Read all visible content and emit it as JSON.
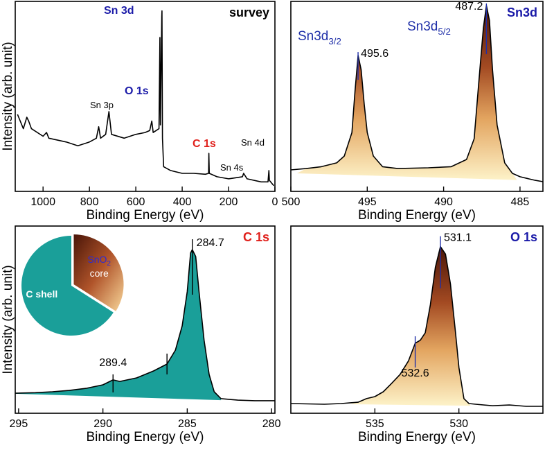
{
  "chart_data": [
    {
      "type": "line",
      "title": "survey",
      "title_color": "#000000",
      "x_label": "Binding Energy (eV)",
      "y_label": "Intensity (arb. unit)",
      "color": "#000000",
      "x": [
        1110,
        1085,
        1070,
        1062,
        1050,
        1000,
        985,
        975,
        900,
        850,
        800,
        770,
        760,
        752,
        730,
        716,
        705,
        650,
        600,
        560,
        540,
        531,
        525,
        500,
        496,
        494,
        488,
        487,
        485,
        480,
        450,
        400,
        350,
        300,
        286,
        285,
        283,
        250,
        200,
        140,
        135,
        120,
        60,
        30,
        26,
        24,
        5
      ],
      "values": [
        40.5,
        33,
        39,
        37,
        33,
        29,
        31,
        28,
        26,
        24,
        26,
        28,
        34,
        28,
        30,
        42,
        30,
        28,
        30,
        31,
        32,
        37,
        31,
        33,
        81,
        35,
        92,
        95,
        28,
        13,
        11,
        9.5,
        9.5,
        9,
        9.5,
        20,
        9.5,
        7.7,
        6.6,
        7.7,
        9.5,
        6.6,
        5,
        5,
        11,
        5.8,
        3
      ],
      "xlim": [
        1120,
        0
      ],
      "ylim": [
        0,
        100
      ],
      "xticks": [
        1000,
        800,
        600,
        400,
        200,
        0
      ],
      "annotations": [
        {
          "text": "Sn 3d",
          "color": "#1a1aa8",
          "bold": true
        },
        {
          "text": "O 1s",
          "color": "#1a1aa8",
          "bold": true
        },
        {
          "text": "C 1s",
          "color": "#e0201b",
          "bold": true
        },
        {
          "text": "Sn 3p",
          "color": "#000000",
          "bold": false
        },
        {
          "text": "Sn 4s",
          "color": "#000000",
          "bold": false
        },
        {
          "text": "Sn 4d",
          "color": "#000000",
          "bold": false
        }
      ]
    },
    {
      "type": "line",
      "title": "Sn3d",
      "title_color": "#1a1aa8",
      "x_label": "Binding Energy (eV)",
      "color": "#000000",
      "fill": "gradient",
      "x": [
        500,
        499,
        498,
        497,
        496.5,
        496,
        495.8,
        495.6,
        495.4,
        495.2,
        495,
        494.6,
        494,
        493,
        491,
        489.5,
        488.5,
        488,
        487.7,
        487.4,
        487.2,
        487,
        486.8,
        486.5,
        486,
        485.5,
        485,
        484,
        483.5
      ],
      "values": [
        11.3,
        12,
        13,
        15,
        18.6,
        31,
        53,
        71.5,
        64,
        46,
        31,
        18.6,
        13,
        12,
        12.4,
        13,
        16.8,
        27.7,
        57,
        86,
        97.8,
        90,
        64,
        35,
        15,
        9.5,
        7.7,
        5.8,
        5.1
      ],
      "baseline_x": [
        499.6,
        485.2
      ],
      "baseline_values": [
        9.5,
        6
      ],
      "xlim": [
        500,
        483.5
      ],
      "ylim": [
        0,
        100
      ],
      "xticks": [
        500,
        495,
        490,
        485
      ],
      "peaks": [
        495.6,
        487.2
      ],
      "marker_color": "#1f2fa8",
      "annotations": [
        {
          "text": "Sn3d",
          "sub": "3/2",
          "color": "#1f2fa8"
        },
        {
          "text": "Sn3d",
          "sub": "5/2",
          "color": "#1f2fa8"
        }
      ]
    },
    {
      "type": "line",
      "title": "C 1s",
      "title_color": "#e0201b",
      "x_label": "Binding Energy (eV)",
      "y_label": "Intensity (arb. unit)",
      "color": "#000000",
      "fill": "#1a9f99",
      "x": [
        295.2,
        294,
        293,
        292,
        291,
        290,
        289.4,
        289,
        288,
        287,
        286.2,
        285.7,
        285.3,
        285,
        284.8,
        284.7,
        284.5,
        284.3,
        284,
        283.7,
        283.4,
        283,
        282,
        281,
        279.8
      ],
      "values": [
        10.7,
        11,
        11.5,
        12.2,
        13.3,
        15.2,
        17.8,
        17,
        18.9,
        22.6,
        26.3,
        33.7,
        46.7,
        65,
        85.6,
        87.4,
        83.7,
        65,
        39,
        20.7,
        11.5,
        7.8,
        7,
        6.7,
        6.7
      ],
      "baseline_x": [
        295.2,
        283
      ],
      "baseline_values": [
        10.4,
        7
      ],
      "xlim": [
        295.2,
        279.8
      ],
      "ylim": [
        0,
        100
      ],
      "xticks": [
        295,
        290,
        285,
        280
      ],
      "peaks": [
        284.7,
        289.4
      ],
      "shoulder": 286.2,
      "marker_color": "#000000",
      "inset": {
        "type": "pie",
        "labels": [
          "C shell",
          "core"
        ],
        "values": [
          66,
          34
        ],
        "colors": [
          "#1a9f99",
          "gradient"
        ],
        "formula": {
          "text": "SnO",
          "sub": "2"
        }
      }
    },
    {
      "type": "line",
      "title": "O 1s",
      "title_color": "#1a1aa8",
      "x_label": "Binding Energy (eV)",
      "color": "#000000",
      "fill": "gradient",
      "x": [
        540,
        538,
        537,
        536,
        535.5,
        535,
        534.5,
        534,
        533.5,
        533,
        532.6,
        532.3,
        532,
        531.7,
        531.4,
        531.1,
        530.8,
        530.5,
        530.2,
        530,
        529.7,
        529.4,
        529,
        528,
        527,
        526,
        525
      ],
      "values": [
        5.2,
        4.8,
        5.2,
        5.9,
        7.8,
        8.9,
        11.5,
        16,
        20.7,
        28,
        37.4,
        39,
        43,
        57.8,
        78,
        89,
        85,
        69,
        43,
        24.4,
        7.8,
        5.2,
        4.8,
        4,
        4.4,
        3.7,
        3.7
      ],
      "baseline_x": [
        536.5,
        529.3
      ],
      "baseline_values": [
        4.8,
        4
      ],
      "xlim": [
        540,
        525
      ],
      "ylim": [
        0,
        100
      ],
      "xticks": [
        535,
        530
      ],
      "peaks": [
        531.1,
        532.6
      ],
      "marker_color": "#1f2fa8"
    }
  ]
}
